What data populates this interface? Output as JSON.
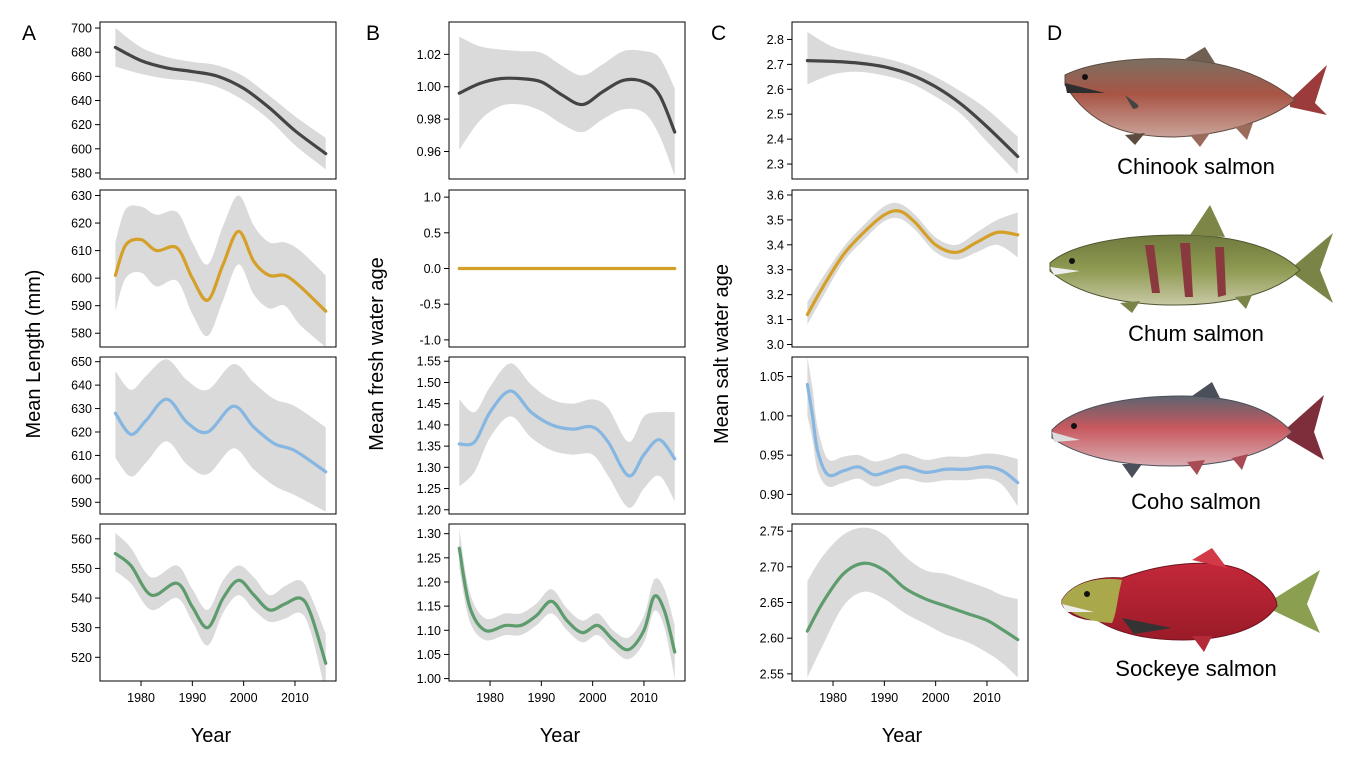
{
  "figure": {
    "panel_letters": [
      "A",
      "B",
      "C",
      "D"
    ],
    "axis_labels": {
      "x_common": "Year",
      "A_y": "Mean Length (mm)",
      "B_y": "Mean fresh water age",
      "C_y": "Mean salt water age"
    },
    "species": [
      {
        "name": "Chinook salmon",
        "color": "#444444"
      },
      {
        "name": "Chum salmon",
        "color": "#D4A029"
      },
      {
        "name": "Coho salmon",
        "color": "#86B6E2"
      },
      {
        "name": "Sockeye salmon",
        "color": "#5E9C6E"
      }
    ],
    "ribbon_color": "#DADADA"
  },
  "chart_data": [
    {
      "panel": "A",
      "type": "line",
      "species": "Chinook salmon",
      "xlabel": "",
      "ylabel": "Mean Length (mm)",
      "xlim": [
        1972,
        2018
      ],
      "ylim": [
        575,
        705
      ],
      "yticks": [
        580,
        600,
        620,
        640,
        660,
        680,
        700
      ],
      "x": [
        1975,
        1980,
        1985,
        1990,
        1995,
        2000,
        2005,
        2010,
        2016
      ],
      "y": [
        684,
        673,
        667,
        664,
        660,
        650,
        634,
        615,
        596
      ],
      "lower": [
        668,
        662,
        658,
        656,
        651,
        640,
        624,
        603,
        583
      ],
      "upper": [
        700,
        684,
        676,
        672,
        669,
        660,
        644,
        627,
        609
      ]
    },
    {
      "panel": "A",
      "type": "line",
      "species": "Chum salmon",
      "xlabel": "",
      "ylabel": "Mean Length (mm)",
      "xlim": [
        1972,
        2018
      ],
      "ylim": [
        575,
        632
      ],
      "yticks": [
        580,
        590,
        600,
        610,
        620,
        630
      ],
      "x": [
        1975,
        1977,
        1980,
        1983,
        1987,
        1990,
        1993,
        1996,
        1999,
        2002,
        2005,
        2008,
        2011,
        2016
      ],
      "y": [
        601,
        612,
        614,
        610,
        611,
        600,
        592,
        605,
        617,
        606,
        601,
        601,
        597,
        588
      ],
      "lower": [
        588,
        600,
        602,
        597,
        599,
        587,
        579,
        592,
        605,
        594,
        589,
        590,
        583,
        575
      ],
      "upper": [
        613,
        625,
        626,
        623,
        624,
        613,
        605,
        619,
        630,
        619,
        613,
        613,
        610,
        601
      ]
    },
    {
      "panel": "A",
      "type": "line",
      "species": "Coho salmon",
      "xlabel": "",
      "ylabel": "Mean Length (mm)",
      "xlim": [
        1972,
        2018
      ],
      "ylim": [
        585,
        652
      ],
      "yticks": [
        590,
        600,
        610,
        620,
        630,
        640,
        650
      ],
      "x": [
        1975,
        1978,
        1981,
        1985,
        1989,
        1993,
        1998,
        2002,
        2006,
        2010,
        2016
      ],
      "y": [
        628,
        619,
        625,
        634,
        624,
        620,
        631,
        622,
        615,
        612,
        603
      ],
      "lower": [
        609,
        601,
        607,
        616,
        606,
        602,
        613,
        604,
        597,
        593,
        586
      ],
      "upper": [
        646,
        638,
        644,
        651,
        642,
        638,
        649,
        641,
        634,
        631,
        622
      ]
    },
    {
      "panel": "A",
      "type": "line",
      "species": "Sockeye salmon",
      "xlabel": "Year",
      "ylabel": "Mean Length (mm)",
      "xlim": [
        1972,
        2018
      ],
      "ylim": [
        512,
        565
      ],
      "yticks": [
        520,
        530,
        540,
        550,
        560
      ],
      "xticks": [
        1980,
        1990,
        2000,
        2010
      ],
      "x": [
        1975,
        1978,
        1982,
        1987,
        1990,
        1993,
        1996,
        1999,
        2002,
        2005,
        2008,
        2011,
        2013,
        2016
      ],
      "y": [
        555,
        551,
        541,
        545,
        537,
        530,
        540,
        546,
        541,
        536,
        538,
        540,
        535,
        518
      ],
      "lower": [
        549,
        545,
        536,
        540,
        532,
        524,
        535,
        541,
        536,
        532,
        533,
        535,
        529,
        508
      ],
      "upper": [
        562,
        557,
        547,
        551,
        543,
        536,
        546,
        551,
        547,
        541,
        544,
        546,
        541,
        528
      ]
    },
    {
      "panel": "B",
      "type": "line",
      "species": "Chinook salmon",
      "xlabel": "",
      "ylabel": "Mean fresh water age",
      "xlim": [
        1972,
        2018
      ],
      "ylim": [
        0.943,
        1.04
      ],
      "yticks": [
        0.96,
        0.98,
        1.0,
        1.02
      ],
      "x": [
        1974,
        1978,
        1982,
        1986,
        1990,
        1994,
        1998,
        2002,
        2006,
        2010,
        2013,
        2016
      ],
      "y": [
        0.996,
        1.002,
        1.005,
        1.005,
        1.003,
        0.995,
        0.989,
        0.997,
        1.004,
        1.003,
        0.995,
        0.972
      ],
      "lower": [
        0.961,
        0.979,
        0.988,
        0.989,
        0.985,
        0.977,
        0.972,
        0.98,
        0.986,
        0.984,
        0.97,
        0.945
      ],
      "upper": [
        1.031,
        1.025,
        1.023,
        1.022,
        1.021,
        1.013,
        1.007,
        1.014,
        1.022,
        1.022,
        1.018,
        0.999
      ]
    },
    {
      "panel": "B",
      "type": "line",
      "species": "Chum salmon",
      "xlabel": "",
      "ylabel": "Mean fresh water age",
      "xlim": [
        1972,
        2018
      ],
      "ylim": [
        -1.1,
        1.1
      ],
      "yticks": [
        -1.0,
        -0.5,
        0.0,
        0.5,
        1.0
      ],
      "x": [
        1974,
        1980,
        1990,
        2000,
        2010,
        2016
      ],
      "y": [
        0,
        0,
        0,
        0,
        0,
        0
      ],
      "lower": [
        0,
        0,
        0,
        0,
        0,
        0
      ],
      "upper": [
        0,
        0,
        0,
        0,
        0,
        0
      ]
    },
    {
      "panel": "B",
      "type": "line",
      "species": "Coho salmon",
      "xlabel": "",
      "ylabel": "Mean fresh water age",
      "xlim": [
        1972,
        2018
      ],
      "ylim": [
        1.19,
        1.56
      ],
      "yticks": [
        1.2,
        1.25,
        1.3,
        1.35,
        1.4,
        1.45,
        1.5,
        1.55
      ],
      "x": [
        1974,
        1977,
        1980,
        1984,
        1988,
        1992,
        1996,
        2000,
        2003,
        2007,
        2010,
        2013,
        2016
      ],
      "y": [
        1.355,
        1.36,
        1.43,
        1.48,
        1.43,
        1.4,
        1.39,
        1.395,
        1.36,
        1.28,
        1.33,
        1.365,
        1.32
      ],
      "lower": [
        1.255,
        1.29,
        1.37,
        1.42,
        1.37,
        1.34,
        1.33,
        1.33,
        1.28,
        1.205,
        1.25,
        1.28,
        1.22
      ],
      "upper": [
        1.46,
        1.43,
        1.49,
        1.545,
        1.495,
        1.46,
        1.45,
        1.46,
        1.44,
        1.36,
        1.42,
        1.43,
        1.43
      ]
    },
    {
      "panel": "B",
      "type": "line",
      "species": "Sockeye salmon",
      "xlabel": "Year",
      "ylabel": "Mean fresh water age",
      "xlim": [
        1972,
        2018
      ],
      "ylim": [
        0.995,
        1.32
      ],
      "yticks": [
        1.0,
        1.05,
        1.1,
        1.15,
        1.2,
        1.25,
        1.3
      ],
      "xticks": [
        1980,
        1990,
        2000,
        2010
      ],
      "x": [
        1974,
        1976,
        1979,
        1983,
        1986,
        1989,
        1992,
        1995,
        1998,
        2001,
        2004,
        2007,
        2010,
        2012,
        2014,
        2016
      ],
      "y": [
        1.27,
        1.15,
        1.1,
        1.11,
        1.11,
        1.13,
        1.16,
        1.12,
        1.095,
        1.11,
        1.08,
        1.06,
        1.1,
        1.17,
        1.14,
        1.055
      ],
      "lower": [
        1.23,
        1.12,
        1.08,
        1.09,
        1.09,
        1.11,
        1.135,
        1.1,
        1.075,
        1.09,
        1.06,
        1.04,
        1.075,
        1.14,
        1.105,
        1.0
      ],
      "upper": [
        1.31,
        1.18,
        1.125,
        1.135,
        1.135,
        1.155,
        1.185,
        1.145,
        1.12,
        1.135,
        1.1,
        1.085,
        1.13,
        1.205,
        1.185,
        1.11
      ]
    },
    {
      "panel": "C",
      "type": "line",
      "species": "Chinook salmon",
      "xlabel": "",
      "ylabel": "Mean salt water age",
      "xlim": [
        1972,
        2018
      ],
      "ylim": [
        2.24,
        2.87
      ],
      "yticks": [
        2.3,
        2.4,
        2.5,
        2.6,
        2.7,
        2.8
      ],
      "x": [
        1975,
        1980,
        1985,
        1990,
        1995,
        2000,
        2005,
        2010,
        2016
      ],
      "y": [
        2.715,
        2.712,
        2.705,
        2.69,
        2.66,
        2.61,
        2.54,
        2.45,
        2.33
      ],
      "lower": [
        2.62,
        2.66,
        2.67,
        2.655,
        2.625,
        2.57,
        2.5,
        2.39,
        2.26
      ],
      "upper": [
        2.83,
        2.77,
        2.745,
        2.725,
        2.695,
        2.65,
        2.59,
        2.52,
        2.41
      ]
    },
    {
      "panel": "C",
      "type": "line",
      "species": "Chum salmon",
      "xlabel": "",
      "ylabel": "Mean salt water age",
      "xlim": [
        1972,
        2018
      ],
      "ylim": [
        2.99,
        3.62
      ],
      "yticks": [
        3.0,
        3.1,
        3.2,
        3.3,
        3.4,
        3.5,
        3.6
      ],
      "x": [
        1975,
        1978,
        1982,
        1986,
        1990,
        1993,
        1996,
        2000,
        2004,
        2008,
        2012,
        2016
      ],
      "y": [
        3.12,
        3.23,
        3.36,
        3.45,
        3.52,
        3.535,
        3.49,
        3.4,
        3.37,
        3.41,
        3.45,
        3.44
      ],
      "lower": [
        3.08,
        3.19,
        3.33,
        3.42,
        3.495,
        3.505,
        3.46,
        3.37,
        3.34,
        3.37,
        3.4,
        3.35
      ],
      "upper": [
        3.17,
        3.27,
        3.39,
        3.48,
        3.555,
        3.565,
        3.52,
        3.43,
        3.4,
        3.45,
        3.5,
        3.53
      ]
    },
    {
      "panel": "C",
      "type": "line",
      "species": "Coho salmon",
      "xlabel": "",
      "ylabel": "Mean salt water age",
      "xlim": [
        1972,
        2018
      ],
      "ylim": [
        0.875,
        1.075
      ],
      "yticks": [
        0.9,
        0.95,
        1.0,
        1.05
      ],
      "x": [
        1975,
        1976,
        1977,
        1979,
        1982,
        1985,
        1988,
        1991,
        1994,
        1998,
        2002,
        2006,
        2010,
        2013,
        2016
      ],
      "y": [
        1.04,
        1.0,
        0.955,
        0.925,
        0.93,
        0.935,
        0.925,
        0.93,
        0.935,
        0.928,
        0.932,
        0.932,
        0.935,
        0.93,
        0.915
      ],
      "lower": [
        1.0,
        0.97,
        0.93,
        0.91,
        0.915,
        0.92,
        0.91,
        0.915,
        0.92,
        0.915,
        0.918,
        0.918,
        0.92,
        0.912,
        0.885
      ],
      "upper": [
        1.075,
        1.035,
        0.985,
        0.945,
        0.948,
        0.95,
        0.942,
        0.946,
        0.952,
        0.944,
        0.948,
        0.948,
        0.952,
        0.95,
        0.945
      ]
    },
    {
      "panel": "C",
      "type": "line",
      "species": "Sockeye salmon",
      "xlabel": "Year",
      "ylabel": "Mean salt water age",
      "xlim": [
        1972,
        2018
      ],
      "ylim": [
        2.54,
        2.76
      ],
      "yticks": [
        2.55,
        2.6,
        2.65,
        2.7,
        2.75
      ],
      "xticks": [
        1980,
        1990,
        2000,
        2010
      ],
      "x": [
        1975,
        1978,
        1982,
        1986,
        1990,
        1994,
        1998,
        2002,
        2006,
        2010,
        2013,
        2016
      ],
      "y": [
        2.61,
        2.65,
        2.69,
        2.705,
        2.695,
        2.67,
        2.655,
        2.645,
        2.635,
        2.625,
        2.612,
        2.598
      ],
      "lower": [
        2.545,
        2.59,
        2.645,
        2.665,
        2.655,
        2.635,
        2.62,
        2.605,
        2.595,
        2.58,
        2.565,
        2.545
      ],
      "upper": [
        2.68,
        2.715,
        2.745,
        2.755,
        2.745,
        2.715,
        2.695,
        2.69,
        2.68,
        2.67,
        2.66,
        2.655
      ]
    }
  ]
}
